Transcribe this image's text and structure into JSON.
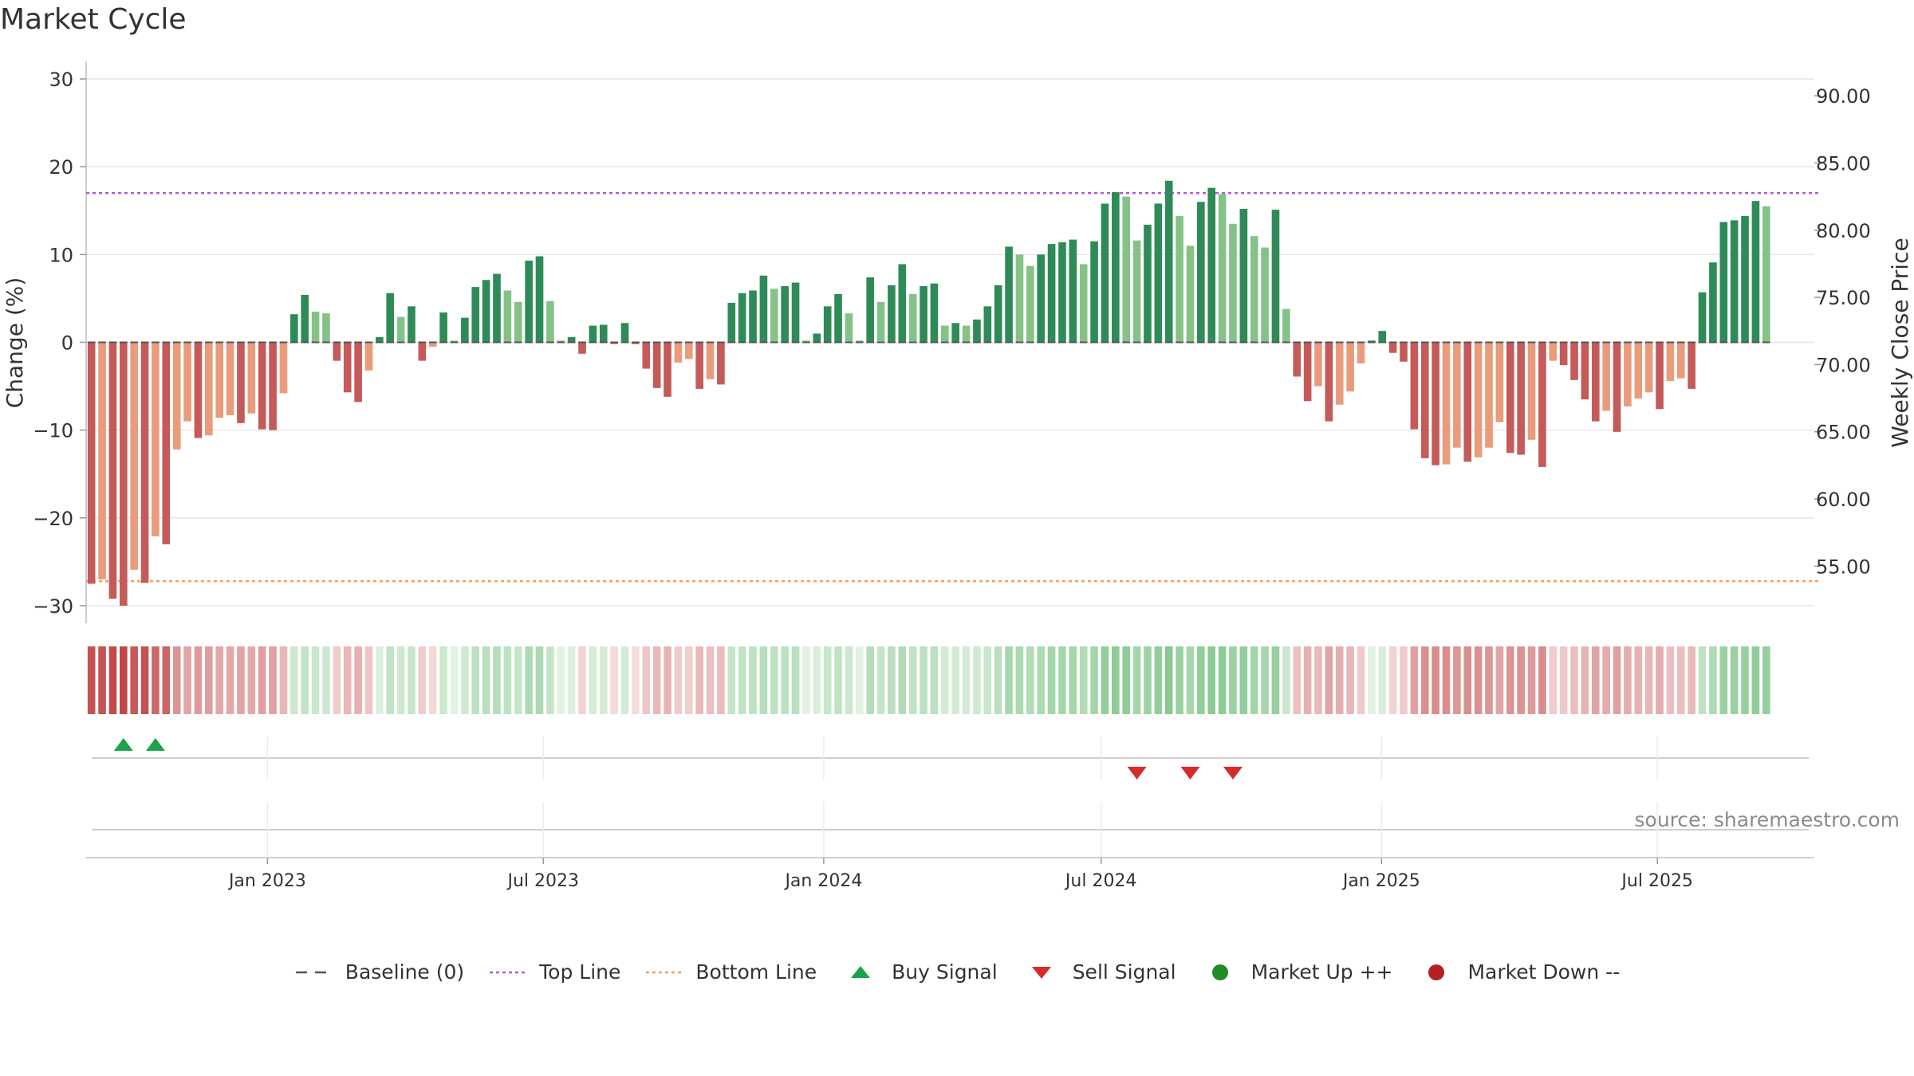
{
  "title": "Market Cycle",
  "source_text": "source: sharemaestro.com",
  "colors": {
    "up_strong": "#2e8b57",
    "up_light": "#86c287",
    "down_strong": "#c55a5a",
    "down_light": "#e99c7c",
    "top_line": "#b05cd6",
    "bottom_line": "#f0a05a",
    "baseline": "#555555",
    "buy": "#1aa34a",
    "sell": "#d62b2b",
    "market_up": "#238b23",
    "market_down": "#b22222"
  },
  "legend": [
    {
      "key": "baseline",
      "label": "Baseline (0)",
      "icon": "dash-line"
    },
    {
      "key": "top_line",
      "label": "Top Line",
      "icon": "dotted-line"
    },
    {
      "key": "bottom_line",
      "label": "Bottom Line",
      "icon": "dotted-line"
    },
    {
      "key": "buy",
      "label": "Buy Signal",
      "icon": "triangle-up"
    },
    {
      "key": "sell",
      "label": "Sell Signal",
      "icon": "triangle-down"
    },
    {
      "key": "market_up",
      "label": "Market Up ++",
      "icon": "circle"
    },
    {
      "key": "market_down",
      "label": "Market Down --",
      "icon": "circle"
    }
  ],
  "chart_data": {
    "type": "bar",
    "title": "Market Cycle",
    "xlabel": "",
    "ylabel": "Change (%)",
    "y2label": "Weekly Close Price",
    "ylim": [
      -32,
      32
    ],
    "y_ticks": [
      30,
      20,
      10,
      0,
      -10,
      -20,
      -30
    ],
    "y_tick_labels": [
      "30",
      "20",
      "10",
      "0",
      "−10",
      "−20",
      "−30"
    ],
    "y2lim": [
      50.75,
      92.56
    ],
    "y2_ticks": [
      90,
      85,
      80,
      75,
      70,
      65,
      60,
      55
    ],
    "y2_tick_labels": [
      "90.00",
      "85.00",
      "80.00",
      "75.00",
      "70.00",
      "65.00",
      "60.00",
      "55.00"
    ],
    "x_start": "2022-09-04",
    "x_end": "2025-10-12",
    "x_ticks": [
      "2023-01-01",
      "2023-07-01",
      "2024-01-01",
      "2024-07-01",
      "2025-01-01",
      "2025-07-01"
    ],
    "x_tick_labels": [
      "Jan 2023",
      "Jul 2023",
      "Jan 2024",
      "Jul 2024",
      "Jan 2025",
      "Jul 2025"
    ],
    "first_week": "2022-09-04",
    "week_step_days": 7,
    "values": [
      -27.5,
      -27,
      -29.2,
      -30,
      -25.9,
      -27.4,
      -22.1,
      -23,
      -12.2,
      -9,
      -10.9,
      -10.6,
      -8.6,
      -8.3,
      -9.2,
      -8.1,
      -9.9,
      -10,
      -5.8,
      3.2,
      5.4,
      3.5,
      3.3,
      -2.1,
      -5.7,
      -6.8,
      -3.2,
      0.6,
      5.6,
      2.9,
      4.1,
      -2.1,
      -0.5,
      3.4,
      0.2,
      2.8,
      6.3,
      7.1,
      7.8,
      5.9,
      4.6,
      9.3,
      9.8,
      4.7,
      0.2,
      0.6,
      -1.3,
      1.9,
      2,
      -0.2,
      2.2,
      -0.2,
      -3,
      -5.2,
      -6.2,
      -2.3,
      -1.9,
      -5.3,
      -4.2,
      -4.8,
      4.5,
      5.6,
      5.9,
      7.6,
      6.1,
      6.4,
      6.8,
      0.2,
      1,
      4.1,
      5.5,
      3.3,
      0.2,
      7.4,
      4.6,
      6.5,
      8.9,
      5.5,
      6.4,
      6.7,
      1.9,
      2.2,
      1.9,
      2.6,
      4.1,
      6.5,
      10.9,
      10,
      8.7,
      10,
      11.2,
      11.4,
      11.7,
      8.9,
      11.5,
      15.8,
      17.1,
      16.6,
      11.6,
      13.4,
      15.8,
      18.4,
      14.4,
      11,
      16,
      17.6,
      16.9,
      13.5,
      15.2,
      12.1,
      10.8,
      15.1,
      3.8,
      -3.9,
      -6.7,
      -5,
      -9,
      -7.1,
      -5.6,
      -2.4,
      0.2,
      1.3,
      -1.2,
      -2.2,
      -9.9,
      -13.2,
      -14,
      -13.9,
      -12,
      -13.6,
      -13.1,
      -12,
      -9.1,
      -12.6,
      -12.8,
      -11.1,
      -14.2,
      -2.1,
      -2.6,
      -4.3,
      -6.5,
      -9,
      -7.8,
      -10.2,
      -7.3,
      -6.4,
      -5.7,
      -7.6,
      -4.4,
      -4.1,
      -5.3,
      5.7,
      9.1,
      13.7,
      13.9,
      14.4,
      16.1,
      15.5
    ],
    "top_line": 17,
    "bottom_line": -27.2,
    "buy_signals": [
      "2022-09-25",
      "2022-10-16"
    ],
    "sell_signals": [
      "2024-07-21",
      "2024-08-25",
      "2024-09-22"
    ],
    "grid": true,
    "legend_position": "bottom"
  }
}
